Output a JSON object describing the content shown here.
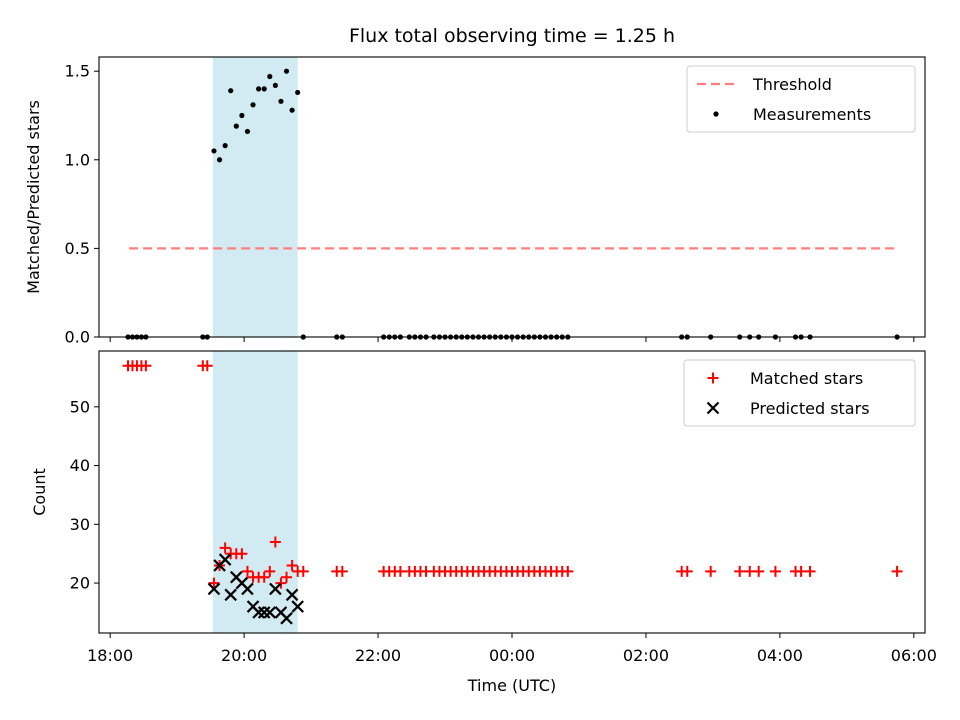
{
  "chart_data": [
    {
      "type": "scatter",
      "title": "Flux total observing time = 1.25 h",
      "ylabel": "Matched/Predicted stars",
      "xlabel": "",
      "xlim": [
        "17:50",
        "06:10"
      ],
      "ylim": [
        0,
        1.58
      ],
      "x_tick_labels": [
        "18:00",
        "20:00",
        "22:00",
        "00:00",
        "02:00",
        "04:00",
        "06:00"
      ],
      "y_ticks": [
        0,
        0.5,
        1.0,
        1.5
      ],
      "y_tick_labels": [
        "0.0",
        "0.5",
        "1.0",
        "1.5"
      ],
      "shaded_interval": {
        "from": "19:32",
        "to": "20:48",
        "color": "#add8e6"
      },
      "legend_position": "upper right",
      "series": [
        {
          "name": "Threshold",
          "kind": "dashed-line",
          "color": "#ff7f7f",
          "points": [
            {
              "x": "18:17",
              "y": 0.5
            },
            {
              "x": "05:45",
              "y": 0.5
            }
          ]
        },
        {
          "name": "Measurements",
          "kind": "dot",
          "color": "#000000",
          "points": [
            {
              "x": "18:16",
              "y": 0
            },
            {
              "x": "18:20",
              "y": 0
            },
            {
              "x": "18:24",
              "y": 0
            },
            {
              "x": "18:28",
              "y": 0
            },
            {
              "x": "18:32",
              "y": 0
            },
            {
              "x": "19:23",
              "y": 0
            },
            {
              "x": "19:27",
              "y": 0
            },
            {
              "x": "19:33",
              "y": 1.05
            },
            {
              "x": "19:38",
              "y": 1.0
            },
            {
              "x": "19:43",
              "y": 1.08
            },
            {
              "x": "19:48",
              "y": 1.39
            },
            {
              "x": "19:53",
              "y": 1.19
            },
            {
              "x": "19:58",
              "y": 1.25
            },
            {
              "x": "20:03",
              "y": 1.16
            },
            {
              "x": "20:08",
              "y": 1.31
            },
            {
              "x": "20:13",
              "y": 1.4
            },
            {
              "x": "20:18",
              "y": 1.4
            },
            {
              "x": "20:23",
              "y": 1.47
            },
            {
              "x": "20:28",
              "y": 1.42
            },
            {
              "x": "20:33",
              "y": 1.33
            },
            {
              "x": "20:38",
              "y": 1.5
            },
            {
              "x": "20:43",
              "y": 1.28
            },
            {
              "x": "20:48",
              "y": 1.38
            },
            {
              "x": "20:53",
              "y": 0
            },
            {
              "x": "21:23",
              "y": 0
            },
            {
              "x": "21:28",
              "y": 0
            },
            {
              "x": "22:05",
              "y": 0
            },
            {
              "x": "22:10",
              "y": 0
            },
            {
              "x": "22:15",
              "y": 0
            },
            {
              "x": "22:20",
              "y": 0
            },
            {
              "x": "22:28",
              "y": 0
            },
            {
              "x": "22:33",
              "y": 0
            },
            {
              "x": "22:38",
              "y": 0
            },
            {
              "x": "22:43",
              "y": 0
            },
            {
              "x": "22:50",
              "y": 0
            },
            {
              "x": "22:55",
              "y": 0
            },
            {
              "x": "23:00",
              "y": 0
            },
            {
              "x": "23:05",
              "y": 0
            },
            {
              "x": "23:10",
              "y": 0
            },
            {
              "x": "23:15",
              "y": 0
            },
            {
              "x": "23:20",
              "y": 0
            },
            {
              "x": "23:25",
              "y": 0
            },
            {
              "x": "23:30",
              "y": 0
            },
            {
              "x": "23:35",
              "y": 0
            },
            {
              "x": "23:40",
              "y": 0
            },
            {
              "x": "23:45",
              "y": 0
            },
            {
              "x": "23:50",
              "y": 0
            },
            {
              "x": "23:55",
              "y": 0
            },
            {
              "x": "00:00",
              "y": 0
            },
            {
              "x": "00:05",
              "y": 0
            },
            {
              "x": "00:10",
              "y": 0
            },
            {
              "x": "00:15",
              "y": 0
            },
            {
              "x": "00:20",
              "y": 0
            },
            {
              "x": "00:25",
              "y": 0
            },
            {
              "x": "00:30",
              "y": 0
            },
            {
              "x": "00:35",
              "y": 0
            },
            {
              "x": "00:40",
              "y": 0
            },
            {
              "x": "00:45",
              "y": 0
            },
            {
              "x": "00:50",
              "y": 0
            },
            {
              "x": "02:32",
              "y": 0
            },
            {
              "x": "02:37",
              "y": 0
            },
            {
              "x": "02:58",
              "y": 0
            },
            {
              "x": "03:24",
              "y": 0
            },
            {
              "x": "03:33",
              "y": 0
            },
            {
              "x": "03:41",
              "y": 0
            },
            {
              "x": "03:56",
              "y": 0
            },
            {
              "x": "04:14",
              "y": 0
            },
            {
              "x": "04:19",
              "y": 0
            },
            {
              "x": "04:27",
              "y": 0
            },
            {
              "x": "05:45",
              "y": 0
            }
          ]
        }
      ]
    },
    {
      "type": "scatter",
      "title": "",
      "ylabel": "Count",
      "xlabel": "Time (UTC)",
      "xlim": [
        "17:50",
        "06:10"
      ],
      "ylim": [
        11.5,
        59.5
      ],
      "x_tick_labels": [
        "18:00",
        "20:00",
        "22:00",
        "00:00",
        "02:00",
        "04:00",
        "06:00"
      ],
      "y_ticks": [
        20,
        30,
        40,
        50
      ],
      "y_tick_labels": [
        "20",
        "30",
        "40",
        "50"
      ],
      "shaded_interval": {
        "from": "19:32",
        "to": "20:48",
        "color": "#add8e6"
      },
      "legend_position": "upper right",
      "series": [
        {
          "name": "Matched stars",
          "kind": "plus",
          "color": "#ff0000",
          "points": [
            {
              "x": "18:16",
              "y": 57
            },
            {
              "x": "18:20",
              "y": 57
            },
            {
              "x": "18:24",
              "y": 57
            },
            {
              "x": "18:28",
              "y": 57
            },
            {
              "x": "18:32",
              "y": 57
            },
            {
              "x": "19:23",
              "y": 57
            },
            {
              "x": "19:27",
              "y": 57
            },
            {
              "x": "19:33",
              "y": 20
            },
            {
              "x": "19:38",
              "y": 23
            },
            {
              "x": "19:43",
              "y": 26
            },
            {
              "x": "19:48",
              "y": 25
            },
            {
              "x": "19:53",
              "y": 25
            },
            {
              "x": "19:58",
              "y": 25
            },
            {
              "x": "20:03",
              "y": 22
            },
            {
              "x": "20:08",
              "y": 21
            },
            {
              "x": "20:13",
              "y": 21
            },
            {
              "x": "20:18",
              "y": 21
            },
            {
              "x": "20:23",
              "y": 22
            },
            {
              "x": "20:28",
              "y": 27
            },
            {
              "x": "20:33",
              "y": 20
            },
            {
              "x": "20:38",
              "y": 21
            },
            {
              "x": "20:43",
              "y": 23
            },
            {
              "x": "20:48",
              "y": 22
            },
            {
              "x": "20:53",
              "y": 22
            },
            {
              "x": "21:23",
              "y": 22
            },
            {
              "x": "21:28",
              "y": 22
            },
            {
              "x": "22:05",
              "y": 22
            },
            {
              "x": "22:10",
              "y": 22
            },
            {
              "x": "22:15",
              "y": 22
            },
            {
              "x": "22:20",
              "y": 22
            },
            {
              "x": "22:28",
              "y": 22
            },
            {
              "x": "22:33",
              "y": 22
            },
            {
              "x": "22:38",
              "y": 22
            },
            {
              "x": "22:43",
              "y": 22
            },
            {
              "x": "22:50",
              "y": 22
            },
            {
              "x": "22:55",
              "y": 22
            },
            {
              "x": "23:00",
              "y": 22
            },
            {
              "x": "23:05",
              "y": 22
            },
            {
              "x": "23:10",
              "y": 22
            },
            {
              "x": "23:15",
              "y": 22
            },
            {
              "x": "23:20",
              "y": 22
            },
            {
              "x": "23:25",
              "y": 22
            },
            {
              "x": "23:30",
              "y": 22
            },
            {
              "x": "23:35",
              "y": 22
            },
            {
              "x": "23:40",
              "y": 22
            },
            {
              "x": "23:45",
              "y": 22
            },
            {
              "x": "23:50",
              "y": 22
            },
            {
              "x": "23:55",
              "y": 22
            },
            {
              "x": "00:00",
              "y": 22
            },
            {
              "x": "00:05",
              "y": 22
            },
            {
              "x": "00:10",
              "y": 22
            },
            {
              "x": "00:15",
              "y": 22
            },
            {
              "x": "00:20",
              "y": 22
            },
            {
              "x": "00:25",
              "y": 22
            },
            {
              "x": "00:30",
              "y": 22
            },
            {
              "x": "00:35",
              "y": 22
            },
            {
              "x": "00:40",
              "y": 22
            },
            {
              "x": "00:45",
              "y": 22
            },
            {
              "x": "00:50",
              "y": 22
            },
            {
              "x": "02:32",
              "y": 22
            },
            {
              "x": "02:37",
              "y": 22
            },
            {
              "x": "02:58",
              "y": 22
            },
            {
              "x": "03:24",
              "y": 22
            },
            {
              "x": "03:33",
              "y": 22
            },
            {
              "x": "03:41",
              "y": 22
            },
            {
              "x": "03:56",
              "y": 22
            },
            {
              "x": "04:14",
              "y": 22
            },
            {
              "x": "04:19",
              "y": 22
            },
            {
              "x": "04:27",
              "y": 22
            },
            {
              "x": "05:45",
              "y": 22
            }
          ]
        },
        {
          "name": "Predicted stars",
          "kind": "cross",
          "color": "#000000",
          "points": [
            {
              "x": "19:33",
              "y": 19
            },
            {
              "x": "19:38",
              "y": 23
            },
            {
              "x": "19:43",
              "y": 24
            },
            {
              "x": "19:48",
              "y": 18
            },
            {
              "x": "19:53",
              "y": 21
            },
            {
              "x": "19:58",
              "y": 20
            },
            {
              "x": "20:03",
              "y": 19
            },
            {
              "x": "20:08",
              "y": 16
            },
            {
              "x": "20:13",
              "y": 15
            },
            {
              "x": "20:18",
              "y": 15
            },
            {
              "x": "20:23",
              "y": 15
            },
            {
              "x": "20:28",
              "y": 19
            },
            {
              "x": "20:33",
              "y": 15
            },
            {
              "x": "20:38",
              "y": 14
            },
            {
              "x": "20:43",
              "y": 18
            },
            {
              "x": "20:48",
              "y": 16
            }
          ]
        }
      ]
    }
  ]
}
